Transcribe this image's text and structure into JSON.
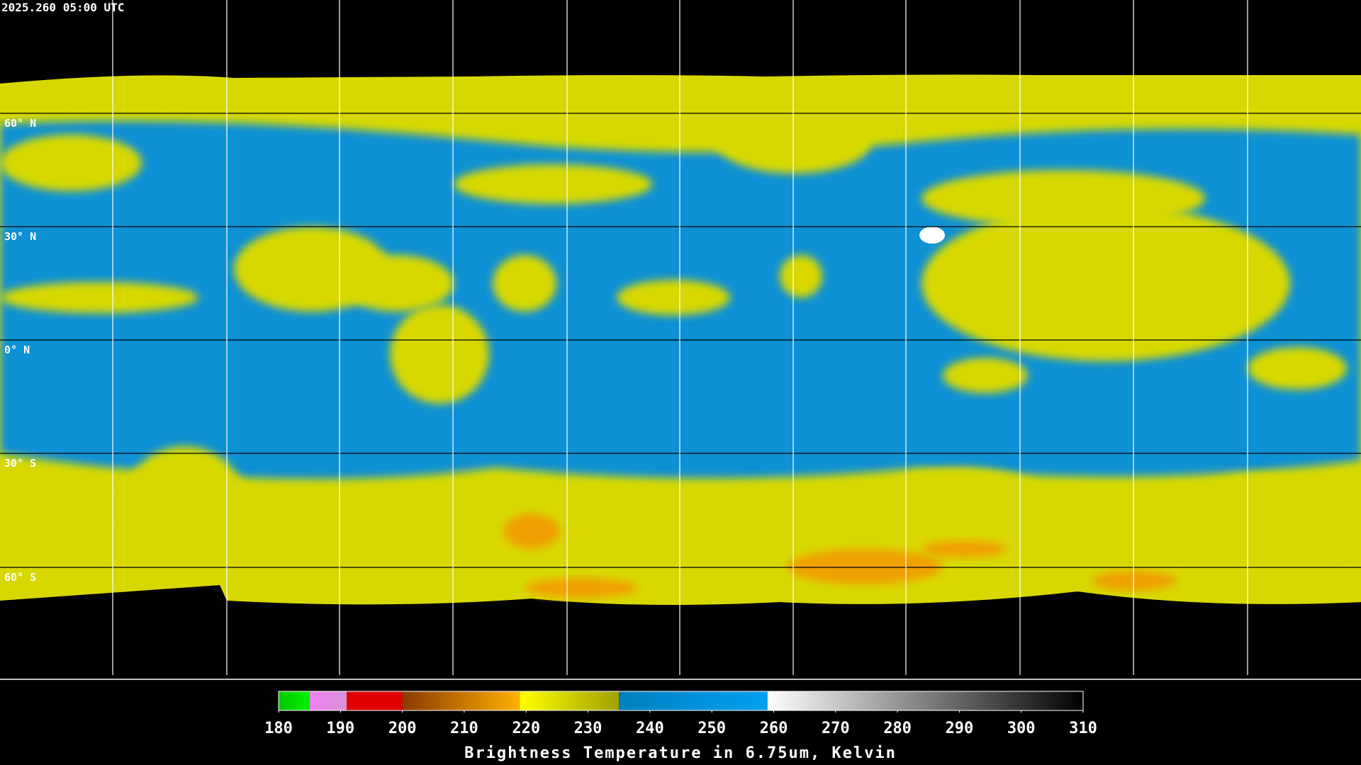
{
  "timestamp": "2025.260 05:00 UTC",
  "lat_labels": [
    "60° N",
    "30° N",
    "0° N",
    "30° S",
    "60° S"
  ],
  "colorbar": {
    "label": "Brightness Temperature in 6.75um, Kelvin",
    "lim": [
      180,
      310
    ],
    "ticks": [
      180,
      190,
      200,
      210,
      220,
      230,
      240,
      250,
      260,
      270,
      280,
      290,
      300,
      310
    ],
    "segments": [
      {
        "from": 180,
        "to": 185,
        "colors": [
          "#00c800",
          "#00f000"
        ]
      },
      {
        "from": 185,
        "to": 191,
        "colors": [
          "#f080f0",
          "#d890d8"
        ]
      },
      {
        "from": 191,
        "to": 200,
        "colors": [
          "#e00000",
          "#e00000"
        ]
      },
      {
        "from": 200,
        "to": 219,
        "colors": [
          "#8a3a00",
          "#ffb000"
        ]
      },
      {
        "from": 219,
        "to": 235,
        "colors": [
          "#ffff00",
          "#a0a000"
        ]
      },
      {
        "from": 235,
        "to": 259,
        "colors": [
          "#0080c0",
          "#00a0f0"
        ]
      },
      {
        "from": 259,
        "to": 310,
        "colors": [
          "#ffffff",
          "#000000"
        ]
      }
    ]
  }
}
